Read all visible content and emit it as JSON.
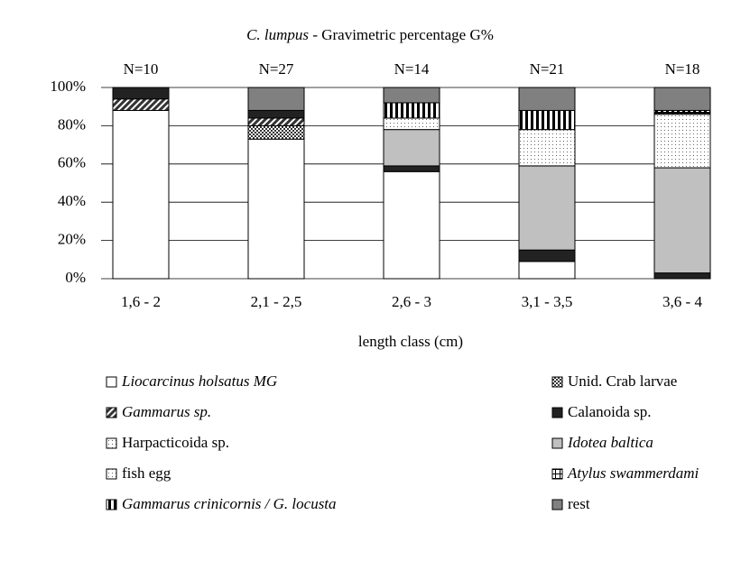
{
  "chart_data": {
    "type": "stacked_bar",
    "title": {
      "species": "C. lumpus",
      "text": "- Gravimetric percentage G%"
    },
    "x_label": "length class (cm)",
    "categories": [
      "1,6 - 2",
      "2,1 - 2,5",
      "2,6 - 3",
      "3,1 - 3,5",
      "3,6 - 4"
    ],
    "annotations": [
      "N=10",
      "N=27",
      "N=14",
      "N=21",
      "N=18"
    ],
    "ylim": [
      0,
      100
    ],
    "yticks": [
      {
        "value": 0,
        "label": "0%"
      },
      {
        "value": 20,
        "label": "20%"
      },
      {
        "value": 40,
        "label": "40%"
      },
      {
        "value": 60,
        "label": "60%"
      },
      {
        "value": 80,
        "label": "80%"
      },
      {
        "value": 100,
        "label": "100%"
      }
    ],
    "grid": true,
    "series": [
      {
        "name": "Liocarcinus holsatus MG",
        "color": "#ffffff",
        "values": [
          88,
          73,
          56,
          9,
          0
        ]
      },
      {
        "name": "Unid. Crab larvae",
        "color": "#444444",
        "values": [
          0,
          7,
          0,
          0,
          0
        ]
      },
      {
        "name": "Gammarus sp.",
        "color": "#555555",
        "values": [
          6,
          4,
          0,
          0,
          0
        ]
      },
      {
        "name": "Calanoida sp.",
        "color": "#222222",
        "values": [
          6,
          4,
          3,
          6,
          3
        ]
      },
      {
        "name": "Harpacticoida sp.",
        "color": "#bbbbbb",
        "values": [
          0,
          0,
          0,
          0,
          0
        ]
      },
      {
        "name": "Idotea baltica",
        "color": "#c0c0c0",
        "values": [
          0,
          0,
          19,
          44,
          55
        ]
      },
      {
        "name": "fish egg",
        "color": "#eeeeee",
        "values": [
          0,
          0,
          6,
          19,
          28
        ]
      },
      {
        "name": "Atylus swammerdami",
        "color": "#dddddd",
        "values": [
          0,
          0,
          0,
          0,
          1
        ]
      },
      {
        "name": "Gammarus crinicornis / G. locusta",
        "color": "#999999",
        "values": [
          0,
          0,
          8,
          10,
          1
        ]
      },
      {
        "name": "rest",
        "color": "#808080",
        "values": [
          0,
          12,
          8,
          12,
          12
        ]
      }
    ]
  }
}
